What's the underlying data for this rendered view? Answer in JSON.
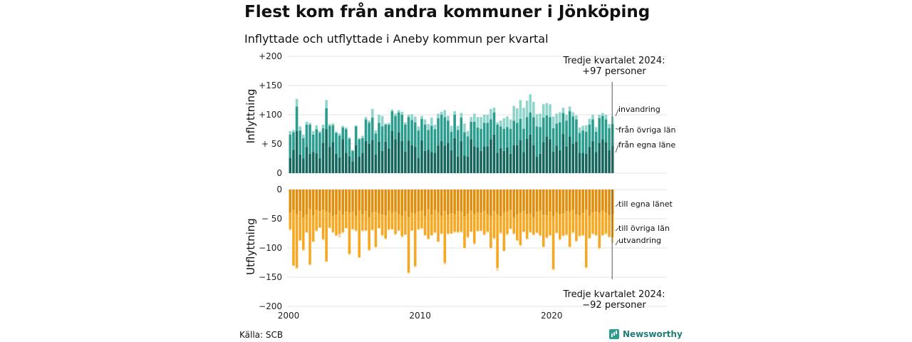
{
  "title": "Flest kom från andra kommuner i Jönköping",
  "subtitle": "Inflyttade och utflyttade i Aneby kommun per kvartal",
  "source": "Källa: SCB",
  "brand": "Newsworthy",
  "colors": {
    "in_egna": "#15675d",
    "in_ovriga": "#2a9d8f",
    "in_invandring": "#8fd5cb",
    "out_egna": "#e08e0b",
    "out_ovriga": "#f6a823",
    "out_utvandring": "#f7d8a0",
    "grid": "#e3e3e3"
  },
  "chart_data": [
    {
      "type": "bar",
      "stacked": true,
      "ylabel": "Inflyttning",
      "ylim": [
        0,
        200
      ],
      "yticks": [
        "0",
        "+ 50",
        "+100",
        "+150",
        "+200"
      ],
      "x_start": "2000 Q1",
      "x_end": "2024 Q3",
      "xticks": [
        "2000",
        "2010",
        "2020"
      ],
      "annotation": [
        "Tredje kvartalet 2024:",
        "+97 personer"
      ],
      "series": [
        {
          "name": "från egna läne",
          "values": [
            26,
            40,
            72,
            32,
            25,
            45,
            33,
            36,
            34,
            25,
            52,
            75,
            45,
            53,
            33,
            27,
            58,
            35,
            29,
            20,
            48,
            28,
            35,
            55,
            50,
            57,
            32,
            54,
            38,
            54,
            42,
            72,
            58,
            70,
            55,
            37,
            56,
            48,
            45,
            26,
            56,
            38,
            40,
            36,
            35,
            47,
            55,
            47,
            52,
            39,
            60,
            28,
            55,
            30,
            28,
            58,
            46,
            44,
            38,
            46,
            46,
            58,
            66,
            35,
            43,
            38,
            44,
            33,
            48,
            48,
            57,
            36,
            59,
            66,
            48,
            28,
            33,
            53,
            63,
            58,
            37,
            47,
            39,
            67,
            46,
            63,
            50,
            54,
            35,
            35,
            33,
            45,
            55,
            36,
            52,
            58,
            53,
            39,
            47
          ]
        },
        {
          "name": "från övriga län",
          "values": [
            40,
            30,
            42,
            41,
            35,
            38,
            50,
            30,
            41,
            44,
            25,
            36,
            36,
            29,
            36,
            37,
            20,
            40,
            30,
            18,
            32,
            30,
            25,
            37,
            36,
            38,
            36,
            32,
            42,
            29,
            41,
            34,
            40,
            34,
            45,
            46,
            40,
            43,
            42,
            47,
            37,
            45,
            34,
            45,
            40,
            47,
            45,
            49,
            38,
            32,
            40,
            46,
            40,
            40,
            35,
            30,
            42,
            34,
            38,
            40,
            40,
            34,
            38,
            48,
            37,
            38,
            35,
            43,
            42,
            38,
            36,
            40,
            37,
            38,
            48,
            52,
            46,
            42,
            36,
            38,
            40,
            38,
            48,
            36,
            44,
            43,
            47,
            38,
            34,
            38,
            38,
            38,
            37,
            35,
            42,
            40,
            39,
            38,
            37
          ]
        },
        {
          "name": "invandring",
          "values": [
            6,
            4,
            13,
            7,
            6,
            5,
            3,
            6,
            7,
            3,
            6,
            14,
            3,
            3,
            2,
            4,
            3,
            3,
            2,
            2,
            2,
            2,
            4,
            4,
            4,
            15,
            5,
            14,
            18,
            2,
            3,
            3,
            4,
            4,
            5,
            4,
            4,
            10,
            10,
            7,
            5,
            9,
            10,
            14,
            8,
            8,
            5,
            12,
            8,
            10,
            6,
            7,
            8,
            15,
            9,
            8,
            14,
            18,
            20,
            14,
            14,
            18,
            8,
            4,
            10,
            18,
            18,
            16,
            25,
            25,
            32,
            36,
            28,
            31,
            26,
            21,
            23,
            23,
            21,
            22,
            20,
            17,
            17,
            9,
            10,
            8,
            7,
            7,
            9,
            8,
            11,
            10,
            8,
            8,
            6,
            5,
            8,
            7,
            13
          ]
        }
      ]
    },
    {
      "type": "bar",
      "stacked": true,
      "ylabel": "Utflyttning",
      "ylim": [
        -200,
        0
      ],
      "yticks": [
        "−200",
        "−150",
        "−100",
        "− 50",
        "0"
      ],
      "annotation": [
        "Tredje kvartalet 2024:",
        "−92 personer"
      ],
      "series": [
        {
          "name": "till egna länet",
          "values": [
            -40,
            -35,
            -42,
            -37,
            -48,
            -43,
            -33,
            -44,
            -35,
            -37,
            -35,
            -38,
            -40,
            -45,
            -43,
            -36,
            -43,
            -38,
            -40,
            -38,
            -45,
            -36,
            -42,
            -37,
            -48,
            -39,
            -38,
            -41,
            -43,
            -44,
            -36,
            -40,
            -38,
            -42,
            -45,
            -37,
            -47,
            -40,
            -41,
            -38,
            -36,
            -46,
            -34,
            -43,
            -35,
            -39,
            -45,
            -37,
            -43,
            -41,
            -42,
            -37,
            -38,
            -46,
            -41,
            -36,
            -42,
            -39,
            -40,
            -37,
            -42,
            -45,
            -37,
            -42,
            -46,
            -40,
            -38,
            -35,
            -48,
            -42,
            -40,
            -37,
            -42,
            -41,
            -47,
            -38,
            -36,
            -43,
            -44,
            -38,
            -46,
            -39,
            -43,
            -41,
            -37,
            -38,
            -35,
            -43,
            -44,
            -40,
            -35,
            -45,
            -39,
            -38,
            -40,
            -36,
            -39,
            -44,
            -42
          ]
        },
        {
          "name": "till övriga län",
          "values": [
            -28,
            -95,
            -92,
            -50,
            -55,
            -30,
            -95,
            -45,
            -35,
            -28,
            -50,
            -85,
            -25,
            -28,
            -35,
            -40,
            -30,
            -28,
            -70,
            -30,
            -25,
            -80,
            -28,
            -33,
            -55,
            -30,
            -60,
            -25,
            -35,
            -40,
            -32,
            -28,
            -38,
            -28,
            -35,
            -40,
            -95,
            -30,
            -90,
            -30,
            -30,
            -32,
            -50,
            -35,
            -38,
            -50,
            -30,
            -88,
            -32,
            -34,
            -30,
            -36,
            -34,
            -54,
            -40,
            -36,
            -50,
            -32,
            -30,
            -40,
            -30,
            -55,
            -46,
            -92,
            -28,
            -65,
            -38,
            -32,
            -27,
            -45,
            -55,
            -35,
            -42,
            -32,
            -30,
            -36,
            -42,
            -55,
            -38,
            -40,
            -90,
            -35,
            -42,
            -38,
            -40,
            -60,
            -38,
            -45,
            -35,
            -38,
            -98,
            -38,
            -36,
            -40,
            -60,
            -42,
            -36,
            -37,
            -40
          ]
        },
        {
          "name": "utvandring",
          "values": [
            -2,
            -1,
            -2,
            -1,
            -2,
            -1,
            -2,
            -1,
            -2,
            -1,
            -2,
            -1,
            -2,
            -1,
            -2,
            -6,
            -2,
            -1,
            -2,
            -1,
            -2,
            -1,
            -2,
            -1,
            -2,
            -1,
            -2,
            -1,
            -2,
            -1,
            -2,
            -1,
            -2,
            -1,
            -2,
            -1,
            -2,
            -1,
            -2,
            -1,
            -2,
            -1,
            -2,
            -1,
            -2,
            -1,
            -2,
            -3,
            -2,
            -1,
            -2,
            -1,
            -2,
            -1,
            -2,
            -1,
            -2,
            -1,
            -2,
            -1,
            -2,
            -1,
            -2,
            -5,
            -2,
            -1,
            -2,
            -1,
            -2,
            -1,
            -2,
            -1,
            -2,
            -1,
            -2,
            -1,
            -2,
            -1,
            -2,
            -1,
            -2,
            -1,
            -2,
            -1,
            -2,
            -1,
            -2,
            -1,
            -2,
            -1,
            -2,
            -1,
            -2,
            -1,
            -2,
            -1,
            -2,
            -1,
            -10
          ]
        }
      ]
    }
  ]
}
